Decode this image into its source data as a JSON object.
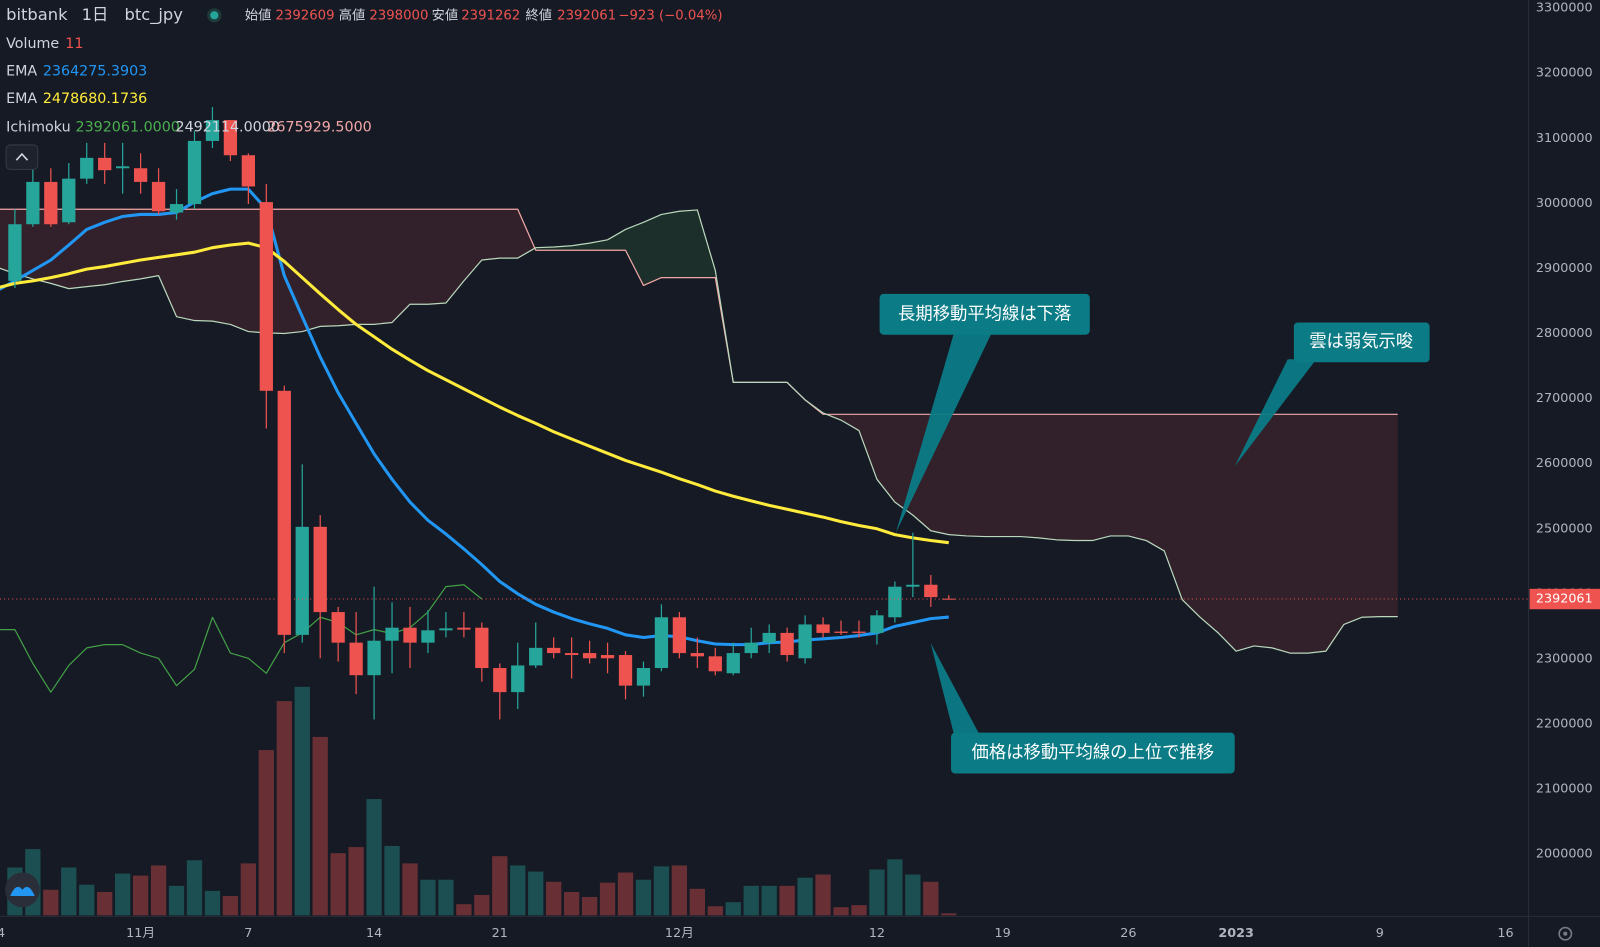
{
  "header": {
    "exchange": "bitbank",
    "interval": "1日",
    "symbol": "btc_jpy",
    "labels": [
      "始値",
      "高値",
      "安値",
      "終値"
    ],
    "change": "−923 (−0.04%)",
    "volume_label": "Volume",
    "ema_label": "EMA",
    "ichimoku_label": "Ichimoku",
    "ichimoku_values": [
      "2392061.0000",
      "2492114.0000",
      "2675929.5000"
    ]
  },
  "chart_data": {
    "type": "candlestick",
    "categories": [
      "4",
      null,
      null,
      null,
      null,
      null,
      null,
      null,
      "11月",
      null,
      null,
      null,
      null,
      null,
      "7",
      null,
      null,
      null,
      null,
      null,
      null,
      "14",
      null,
      null,
      null,
      null,
      null,
      null,
      "21",
      null,
      null,
      null,
      null,
      null,
      null,
      null,
      null,
      null,
      "12月",
      null,
      null,
      null,
      null,
      null,
      null,
      null,
      null,
      null,
      null,
      "12",
      null,
      null,
      null,
      null,
      null,
      null,
      "19",
      null,
      null,
      null,
      null,
      null,
      null,
      "26",
      null,
      null,
      null,
      null,
      null,
      "2023",
      null,
      null,
      null,
      null,
      null,
      null,
      null,
      "9",
      null,
      null,
      null,
      null,
      null,
      null,
      "16",
      null
    ],
    "open": [
      null,
      2881000,
      2968000,
      3033000,
      2971000,
      3038000,
      3070000,
      3054000,
      3054000,
      3033000,
      2986000,
      2999000,
      3096000,
      3128000,
      3074000,
      3002000,
      2712000,
      2337000,
      2503000,
      2372000,
      2325000,
      2275000,
      2328000,
      2348000,
      2325000,
      2344000,
      2348000,
      2348000,
      2286000,
      2249000,
      2290000,
      2317000,
      2309000,
      2309000,
      2306000,
      2306000,
      2259000,
      2286000,
      2364000,
      2309000,
      2304000,
      2278000,
      2309000,
      2325000,
      2340000,
      2301000,
      2353000,
      2342000,
      2342000,
      2340000,
      2364000,
      2411000,
      2414000,
      2392609,
      null,
      null,
      null,
      null,
      null,
      null,
      null,
      null,
      null,
      null,
      null,
      null,
      null,
      null,
      null,
      null,
      null,
      null,
      null,
      null,
      null,
      null,
      null,
      null,
      null,
      null,
      null,
      null,
      null,
      null,
      null,
      null
    ],
    "high": [
      null,
      2991000,
      3062000,
      3054000,
      3062000,
      3093000,
      3093000,
      3093000,
      3077000,
      3054000,
      3022000,
      3112000,
      3148000,
      3128000,
      3077000,
      3030000,
      2720000,
      2599000,
      2521000,
      2380000,
      2372000,
      2411000,
      2387000,
      2380000,
      2375000,
      2372000,
      2372000,
      2356000,
      2293000,
      2325000,
      2356000,
      2333000,
      2333000,
      2328000,
      2325000,
      2312000,
      2296000,
      2384000,
      2372000,
      2333000,
      2317000,
      2325000,
      2348000,
      2353000,
      2348000,
      2367000,
      2364000,
      2359000,
      2359000,
      2375000,
      2419000,
      2494000,
      2429000,
      2398000,
      null,
      null,
      null,
      null,
      null,
      null,
      null,
      null,
      null,
      null,
      null,
      null,
      null,
      null,
      null,
      null,
      null,
      null,
      null,
      null,
      null,
      null,
      null,
      null,
      null,
      null,
      null,
      null,
      null,
      null,
      null,
      null
    ],
    "low": [
      null,
      2870000,
      2964000,
      2964000,
      2968000,
      3030000,
      3030000,
      3015000,
      3015000,
      2983000,
      2975000,
      2991000,
      3085000,
      3065000,
      2999000,
      2654000,
      2309000,
      2325000,
      2301000,
      2296000,
      2246000,
      2207000,
      2278000,
      2286000,
      2309000,
      2333000,
      2333000,
      2265000,
      2207000,
      2223000,
      2286000,
      2301000,
      2270000,
      2293000,
      2278000,
      2238000,
      2242000,
      2281000,
      2301000,
      2286000,
      2275000,
      2275000,
      2301000,
      2309000,
      2296000,
      2293000,
      2333000,
      2337000,
      2333000,
      2322000,
      2356000,
      2395000,
      2380000,
      2391262,
      null,
      null,
      null,
      null,
      null,
      null,
      null,
      null,
      null,
      null,
      null,
      null,
      null,
      null,
      null,
      null,
      null,
      null,
      null,
      null,
      null,
      null,
      null,
      null,
      null,
      null,
      null,
      null,
      null,
      null,
      null,
      null
    ],
    "close": [
      null,
      2968000,
      3033000,
      2968000,
      3038000,
      3070000,
      3051000,
      3057000,
      3033000,
      2988000,
      2999000,
      3096000,
      3128000,
      3074000,
      3026000,
      2712000,
      2337000,
      2503000,
      2372000,
      2325000,
      2275000,
      2328000,
      2348000,
      2325000,
      2344000,
      2347000,
      2345000,
      2286000,
      2249000,
      2290000,
      2317000,
      2309000,
      2306000,
      2301000,
      2301000,
      2259000,
      2286000,
      2364000,
      2309000,
      2304000,
      2281000,
      2309000,
      2325000,
      2340000,
      2306000,
      2353000,
      2340000,
      2340000,
      2340000,
      2367000,
      2411000,
      2414000,
      2395000,
      2392061,
      null,
      null,
      null,
      null,
      null,
      null,
      null,
      null,
      null,
      null,
      null,
      null,
      null,
      null,
      null,
      null,
      null,
      null,
      null,
      null,
      null,
      null,
      null,
      null,
      null,
      null,
      null,
      null,
      null,
      null,
      null,
      null
    ],
    "up_color": "#26a69a",
    "down_color": "#ef5350",
    "volume": {
      "name": "Volume",
      "axis": "y2",
      "up_color": "rgba(38,166,154,0.38)",
      "down_color": "rgba(239,83,80,0.38)",
      "values": [
        null,
        258,
        357,
        138,
        258,
        165,
        126,
        225,
        214,
        269,
        159,
        297,
        132,
        104,
        280,
        891,
        1155,
        1232,
        962,
        335,
        368,
        627,
        374,
        280,
        192,
        192,
        60,
        110,
        319,
        269,
        236,
        181,
        126,
        99,
        176,
        231,
        192,
        264,
        269,
        143,
        49,
        71,
        159,
        159,
        159,
        203,
        220,
        44,
        55,
        247,
        302,
        220,
        181,
        11,
        null,
        null,
        null,
        null,
        null,
        null,
        null,
        null,
        null,
        null,
        null,
        null,
        null,
        null,
        null,
        null,
        null,
        null,
        null,
        null,
        null,
        null,
        null,
        null,
        null,
        null,
        null,
        null,
        null,
        null,
        null,
        null
      ]
    },
    "series": [
      {
        "name": "EMA",
        "color": "#2196f3",
        "values": [
          2866000,
          2881000,
          2897000,
          2913000,
          2936000,
          2960000,
          2971000,
          2980000,
          2983000,
          2983000,
          2986000,
          3002000,
          3015000,
          3022000,
          3022000,
          2991000,
          2889000,
          2826000,
          2764000,
          2709000,
          2662000,
          2615000,
          2576000,
          2541000,
          2513000,
          2492000,
          2469000,
          2445000,
          2419000,
          2400000,
          2384000,
          2372000,
          2362000,
          2354000,
          2347000,
          2337000,
          2333000,
          2336000,
          2334000,
          2328000,
          2323000,
          2322000,
          2322000,
          2325000,
          2326000,
          2329000,
          2331000,
          2333000,
          2336000,
          2340000,
          2350000,
          2356000,
          2362000,
          2364275.3903,
          null,
          null,
          null,
          null,
          null,
          null,
          null,
          null,
          null,
          null,
          null,
          null,
          null,
          null,
          null,
          null,
          null,
          null,
          null,
          null,
          null,
          null,
          null,
          null,
          null,
          null,
          null,
          null,
          null,
          null,
          null,
          null
        ]
      },
      {
        "name": "EMA",
        "color": "#ffeb3b",
        "values": [
          2870000,
          2877000,
          2881000,
          2886000,
          2892000,
          2899000,
          2903000,
          2908000,
          2913000,
          2917000,
          2921000,
          2925000,
          2932000,
          2936000,
          2939000,
          2932000,
          2911000,
          2886000,
          2861000,
          2837000,
          2814000,
          2795000,
          2776000,
          2759000,
          2743000,
          2729000,
          2715000,
          2701000,
          2687000,
          2674000,
          2662000,
          2649000,
          2638000,
          2627000,
          2616000,
          2605000,
          2596000,
          2587000,
          2577000,
          2568000,
          2558000,
          2550000,
          2543000,
          2536000,
          2530000,
          2524000,
          2518000,
          2511000,
          2505000,
          2500000,
          2491000,
          2486000,
          2482000,
          2478680.1736,
          null,
          null,
          null,
          null,
          null,
          null,
          null,
          null,
          null,
          null,
          null,
          null,
          null,
          null,
          null,
          null,
          null,
          null,
          null,
          null,
          null,
          null,
          null,
          null,
          null,
          null,
          null,
          null,
          null,
          null,
          null,
          null
        ]
      }
    ],
    "ichimoku": {
      "name": "Ichimoku",
      "bull_fill": "rgba(67,160,71,0.16)",
      "bear_fill": "rgba(239,83,80,0.13)",
      "lagging": {
        "color": "#43a047",
        "values": [
          2345000,
          2345000,
          2293000,
          2249000,
          2290000,
          2317000,
          2322000,
          2322000,
          2309000,
          2301000,
          2259000,
          2284000,
          2364000,
          2309000,
          2301000,
          2278000,
          2325000,
          2340000,
          2364000,
          2356000,
          2337000,
          2345000,
          2339000,
          2348000,
          2372000,
          2411000,
          2414000,
          2392061,
          null,
          null,
          null,
          null,
          null,
          null,
          null,
          null,
          null,
          null,
          null,
          null,
          null,
          null,
          null,
          null,
          null,
          null,
          null,
          null,
          null,
          null,
          null,
          null,
          null,
          null,
          null,
          null,
          null,
          null,
          null,
          null,
          null,
          null,
          null,
          null,
          null,
          null,
          null,
          null,
          null,
          null,
          null,
          null,
          null,
          null,
          null,
          null,
          null,
          null,
          null,
          null,
          null,
          null,
          null,
          null,
          null,
          null,
          null,
          null
        ]
      },
      "span_a": {
        "color": "#b9d8bd",
        "values": [
          2902000,
          2892000,
          2884000,
          2877000,
          2869000,
          2872000,
          2875000,
          2880000,
          2884000,
          2889000,
          2826000,
          2820000,
          2819000,
          2814000,
          2803000,
          2801000,
          2800000,
          2803000,
          2811000,
          2812000,
          2814000,
          2814000,
          2817000,
          2845000,
          2845000,
          2847000,
          2881000,
          2913000,
          2916000,
          2916000,
          2932000,
          2933000,
          2935000,
          2939000,
          2944000,
          2960000,
          2971000,
          2983000,
          2988000,
          2990000,
          2897000,
          2725000,
          2725000,
          2725000,
          2725000,
          2698000,
          2678000,
          2667000,
          2651000,
          2576000,
          2541000,
          2521000,
          2497000,
          2491000,
          2489000,
          2488000,
          2488000,
          2488000,
          2486000,
          2483000,
          2482000,
          2482000,
          2489000,
          2489000,
          2482000,
          2466000,
          2391000,
          2364000,
          2340000,
          2312000,
          2320000,
          2317000,
          2309000,
          2309000,
          2312000,
          2353000,
          2364000,
          2365000,
          2365000,
          null,
          null,
          null,
          null,
          null,
          null,
          null
        ]
      },
      "span_b": {
        "color": "#f2a8a6",
        "values": [
          2991000,
          2991000,
          2991000,
          2991000,
          2991000,
          2991000,
          2991000,
          2991000,
          2991000,
          2991000,
          2991000,
          2991000,
          2991000,
          2991000,
          2991000,
          2991000,
          2991000,
          2991000,
          2991000,
          2991000,
          2991000,
          2991000,
          2991000,
          2991000,
          2991000,
          2991000,
          2991000,
          2991000,
          2991000,
          2991000,
          2928000,
          2928000,
          2928000,
          2928000,
          2928000,
          2928000,
          2874000,
          2886000,
          2886000,
          2886000,
          2886000,
          2725000,
          2725000,
          2725000,
          2725000,
          2698000,
          2675929.5,
          2675929.5,
          2675929.5,
          2675929.5,
          2675929.5,
          2675929.5,
          2675929.5,
          2675929.5,
          2675929.5,
          2675929.5,
          2675929.5,
          2675929.5,
          2675929.5,
          2675929.5,
          2675929.5,
          2675929.5,
          2675929.5,
          2675929.5,
          2675929.5,
          2675929.5,
          2675929.5,
          2675929.5,
          2675929.5,
          2675929.5,
          2675929.5,
          2675929.5,
          2675929.5,
          2675929.5,
          2675929.5,
          2675929.5,
          2675929.5,
          2675929.5,
          2675929.5,
          null,
          null,
          null,
          null,
          null,
          null,
          null
        ]
      }
    },
    "ylim": [
      1906000,
      3312500
    ],
    "yticks": [
      2000000,
      2100000,
      2200000,
      2300000,
      2400000,
      2500000,
      2600000,
      2700000,
      2800000,
      2900000,
      3000000,
      3100000,
      3200000,
      3300000
    ],
    "y2lim": [
      0,
      4935
    ],
    "grid": false,
    "annotations": [
      {
        "text": "長期移動平均線は下落"
      },
      {
        "text": "雲は弱気示唆"
      },
      {
        "text": "価格は移動平均線の上位で推移"
      }
    ]
  }
}
